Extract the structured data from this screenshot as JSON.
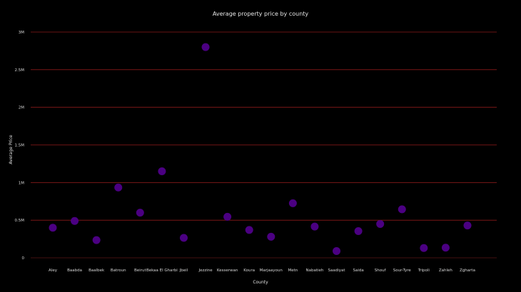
{
  "chart_data": {
    "type": "scatter",
    "title": "Average property price by county",
    "xlabel": "County",
    "ylabel": "Average Price",
    "categories": [
      "Aley",
      "Baabda",
      "Baalbek",
      "Batroun",
      "Beirut",
      "Bekaa El Gharbi",
      "Jbeil",
      "Jezzine",
      "Kesserwan",
      "Koura",
      "Marjaayoun",
      "Metn",
      "Nabatieh",
      "Saadiyat",
      "Saida",
      "Shouf",
      "Sour-Tyre",
      "Tripoli",
      "Zahleh",
      "Zgharta"
    ],
    "values": [
      400000,
      490000,
      235000,
      935000,
      600000,
      1150000,
      265000,
      2800000,
      545000,
      370000,
      280000,
      725000,
      415000,
      90000,
      355000,
      450000,
      645000,
      130000,
      135000,
      430000
    ],
    "ylim": [
      0,
      3000000
    ],
    "yticks": [
      0,
      500000,
      1000000,
      1500000,
      2000000,
      2500000,
      3000000
    ],
    "ytick_labels": [
      "0",
      "0.5M",
      "1M",
      "1.5M",
      "2M",
      "2.5M",
      "3M"
    ],
    "grid": true,
    "colors": {
      "background": "#000000",
      "grid": "#8b1a1a",
      "marker": "#4b0082"
    }
  }
}
